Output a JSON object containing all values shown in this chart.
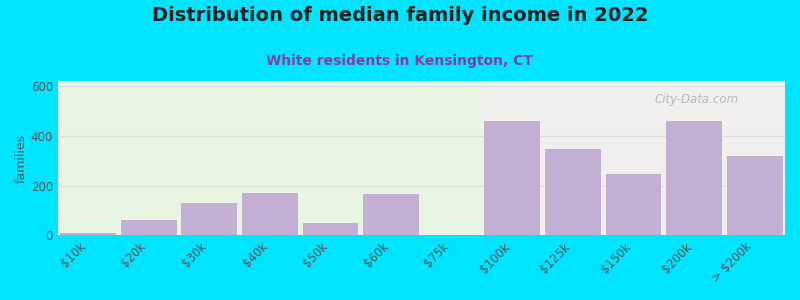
{
  "title": "Distribution of median family income in 2022",
  "subtitle": "White residents in Kensington, CT",
  "categories": [
    "$10k",
    "$20k",
    "$30k",
    "$40k",
    "$50k",
    "$60k",
    "$75k",
    "$100k",
    "$125k",
    "$150k",
    "$200k",
    "> $200k"
  ],
  "values": [
    10,
    60,
    130,
    170,
    50,
    165,
    0,
    460,
    345,
    245,
    460,
    320
  ],
  "bar_color": "#c4afd4",
  "background_color": "#00e5ff",
  "plot_bg_left": "#e8f5e2",
  "plot_bg_right": "#f0efee",
  "title_fontsize": 14,
  "subtitle_fontsize": 10,
  "subtitle_color": "#8040a0",
  "ylabel": "families",
  "ylim": [
    0,
    620
  ],
  "yticks": [
    0,
    200,
    400,
    600
  ],
  "watermark": "City-Data.com",
  "grid_color": "#dddddd",
  "split_index": 7
}
